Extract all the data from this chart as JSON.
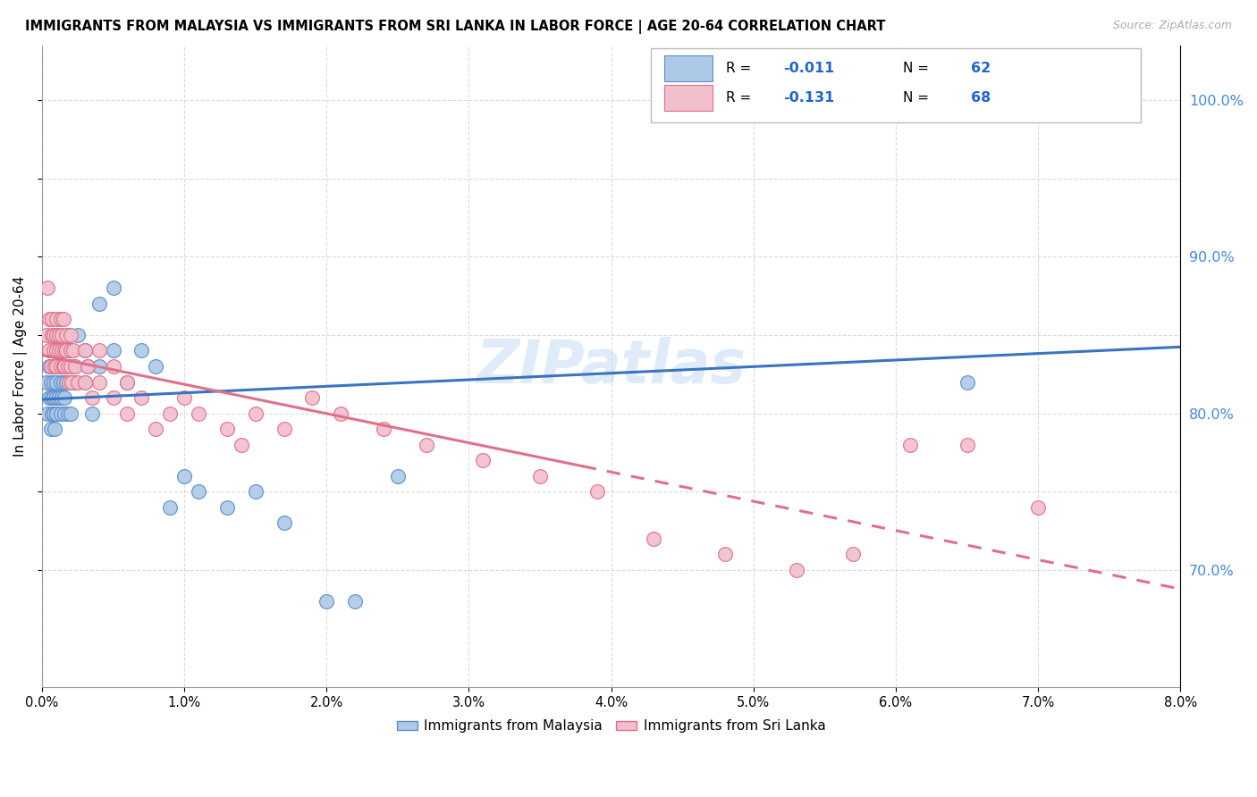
{
  "title": "IMMIGRANTS FROM MALAYSIA VS IMMIGRANTS FROM SRI LANKA IN LABOR FORCE | AGE 20-64 CORRELATION CHART",
  "source": "Source: ZipAtlas.com",
  "ylabel": "In Labor Force | Age 20-64",
  "right_yticks": [
    0.7,
    0.8,
    0.9,
    1.0
  ],
  "right_yticklabels": [
    "70.0%",
    "80.0%",
    "90.0%",
    "100.0%"
  ],
  "xmin": 0.0,
  "xmax": 0.08,
  "ymin": 0.625,
  "ymax": 1.035,
  "malaysia_color": "#aec9e8",
  "malaysia_edge": "#5b8fc9",
  "srilanka_color": "#f2bfcc",
  "srilanka_edge": "#e0708a",
  "malaysia_R": -0.011,
  "malaysia_N": 62,
  "srilanka_R": -0.131,
  "srilanka_N": 68,
  "watermark": "ZIPatlas",
  "malaysia_x": [
    0.0003,
    0.0004,
    0.0005,
    0.0005,
    0.0006,
    0.0006,
    0.0007,
    0.0007,
    0.0007,
    0.0008,
    0.0008,
    0.0008,
    0.0009,
    0.0009,
    0.001,
    0.001,
    0.001,
    0.001,
    0.001,
    0.0012,
    0.0012,
    0.0013,
    0.0013,
    0.0014,
    0.0014,
    0.0015,
    0.0015,
    0.0016,
    0.0016,
    0.0017,
    0.0017,
    0.0018,
    0.0018,
    0.0019,
    0.002,
    0.002,
    0.002,
    0.0022,
    0.0023,
    0.0025,
    0.003,
    0.003,
    0.0032,
    0.0035,
    0.004,
    0.004,
    0.005,
    0.005,
    0.006,
    0.007,
    0.008,
    0.009,
    0.01,
    0.011,
    0.013,
    0.015,
    0.017,
    0.02,
    0.022,
    0.025,
    0.065,
    0.073
  ],
  "malaysia_y": [
    0.82,
    0.8,
    0.81,
    0.83,
    0.79,
    0.82,
    0.8,
    0.81,
    0.83,
    0.8,
    0.81,
    0.82,
    0.79,
    0.83,
    0.8,
    0.81,
    0.82,
    0.84,
    0.8,
    0.83,
    0.81,
    0.82,
    0.8,
    0.84,
    0.81,
    0.82,
    0.83,
    0.8,
    0.81,
    0.84,
    0.82,
    0.85,
    0.8,
    0.83,
    0.82,
    0.8,
    0.84,
    0.83,
    0.82,
    0.85,
    0.84,
    0.82,
    0.83,
    0.8,
    0.87,
    0.83,
    0.88,
    0.84,
    0.82,
    0.84,
    0.83,
    0.74,
    0.76,
    0.75,
    0.74,
    0.75,
    0.73,
    0.68,
    0.68,
    0.76,
    0.82,
    1.0
  ],
  "srilanka_x": [
    0.0003,
    0.0004,
    0.0005,
    0.0005,
    0.0006,
    0.0007,
    0.0007,
    0.0008,
    0.0008,
    0.0009,
    0.001,
    0.001,
    0.001,
    0.001,
    0.0012,
    0.0012,
    0.0013,
    0.0013,
    0.0014,
    0.0014,
    0.0015,
    0.0015,
    0.0016,
    0.0016,
    0.0017,
    0.0017,
    0.0018,
    0.0019,
    0.002,
    0.002,
    0.002,
    0.0021,
    0.0022,
    0.0023,
    0.0025,
    0.003,
    0.003,
    0.0032,
    0.0035,
    0.004,
    0.004,
    0.005,
    0.005,
    0.006,
    0.006,
    0.007,
    0.008,
    0.009,
    0.01,
    0.011,
    0.013,
    0.014,
    0.015,
    0.017,
    0.019,
    0.021,
    0.024,
    0.027,
    0.031,
    0.035,
    0.039,
    0.043,
    0.048,
    0.053,
    0.057,
    0.061,
    0.065,
    0.07
  ],
  "srilanka_y": [
    0.85,
    0.88,
    0.84,
    0.86,
    0.83,
    0.85,
    0.86,
    0.84,
    0.85,
    0.83,
    0.85,
    0.86,
    0.84,
    0.83,
    0.85,
    0.84,
    0.86,
    0.83,
    0.84,
    0.85,
    0.83,
    0.86,
    0.84,
    0.83,
    0.85,
    0.84,
    0.83,
    0.82,
    0.84,
    0.83,
    0.85,
    0.82,
    0.84,
    0.83,
    0.82,
    0.84,
    0.82,
    0.83,
    0.81,
    0.84,
    0.82,
    0.83,
    0.81,
    0.82,
    0.8,
    0.81,
    0.79,
    0.8,
    0.81,
    0.8,
    0.79,
    0.78,
    0.8,
    0.79,
    0.81,
    0.8,
    0.79,
    0.78,
    0.77,
    0.76,
    0.75,
    0.72,
    0.71,
    0.7,
    0.71,
    0.78,
    0.78,
    0.74
  ]
}
